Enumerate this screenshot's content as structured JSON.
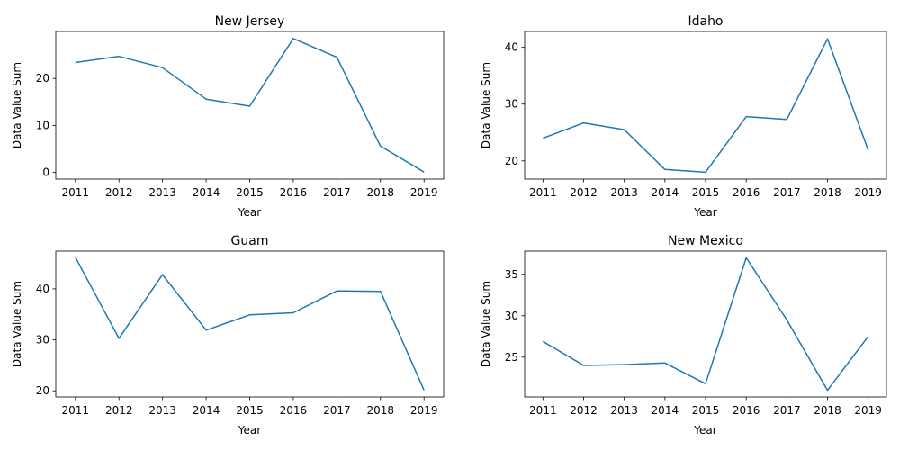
{
  "chart_data": [
    {
      "type": "line",
      "title": "New Jersey",
      "xlabel": "Year",
      "ylabel": "Data Value Sum",
      "x": [
        2011,
        2012,
        2013,
        2014,
        2015,
        2016,
        2017,
        2018,
        2019
      ],
      "values": [
        23.4,
        24.7,
        22.3,
        15.6,
        14.1,
        28.5,
        24.5,
        5.6,
        0.1
      ],
      "ylim": [
        -1.4,
        30
      ],
      "yticks": [
        0,
        10,
        20
      ],
      "grid": false,
      "color": "#1f77b4"
    },
    {
      "type": "line",
      "title": "Idaho",
      "xlabel": "Year",
      "ylabel": "Data Value Sum",
      "x": [
        2011,
        2012,
        2013,
        2014,
        2015,
        2016,
        2017,
        2018,
        2019
      ],
      "values": [
        24.0,
        26.7,
        25.5,
        18.5,
        18.0,
        27.8,
        27.3,
        41.5,
        21.9
      ],
      "ylim": [
        16.8,
        42.8
      ],
      "yticks": [
        20,
        30,
        40
      ],
      "grid": false,
      "color": "#1f77b4"
    },
    {
      "type": "line",
      "title": "Guam",
      "xlabel": "Year",
      "ylabel": "Data Value Sum",
      "x": [
        2011,
        2012,
        2013,
        2014,
        2015,
        2016,
        2017,
        2018,
        2019
      ],
      "values": [
        46.2,
        30.3,
        42.8,
        31.9,
        34.9,
        35.3,
        39.6,
        39.5,
        20.1
      ],
      "ylim": [
        18.8,
        47.4
      ],
      "yticks": [
        20,
        30,
        40
      ],
      "grid": false,
      "color": "#1f77b4"
    },
    {
      "type": "line",
      "title": "New Mexico",
      "xlabel": "Year",
      "ylabel": "Data Value Sum",
      "x": [
        2011,
        2012,
        2013,
        2014,
        2015,
        2016,
        2017,
        2018,
        2019
      ],
      "values": [
        26.9,
        24.0,
        24.1,
        24.3,
        21.8,
        37.0,
        29.5,
        21.0,
        27.5
      ],
      "ylim": [
        20.2,
        37.8
      ],
      "yticks": [
        25,
        30,
        35
      ],
      "grid": false,
      "color": "#1f77b4"
    }
  ]
}
